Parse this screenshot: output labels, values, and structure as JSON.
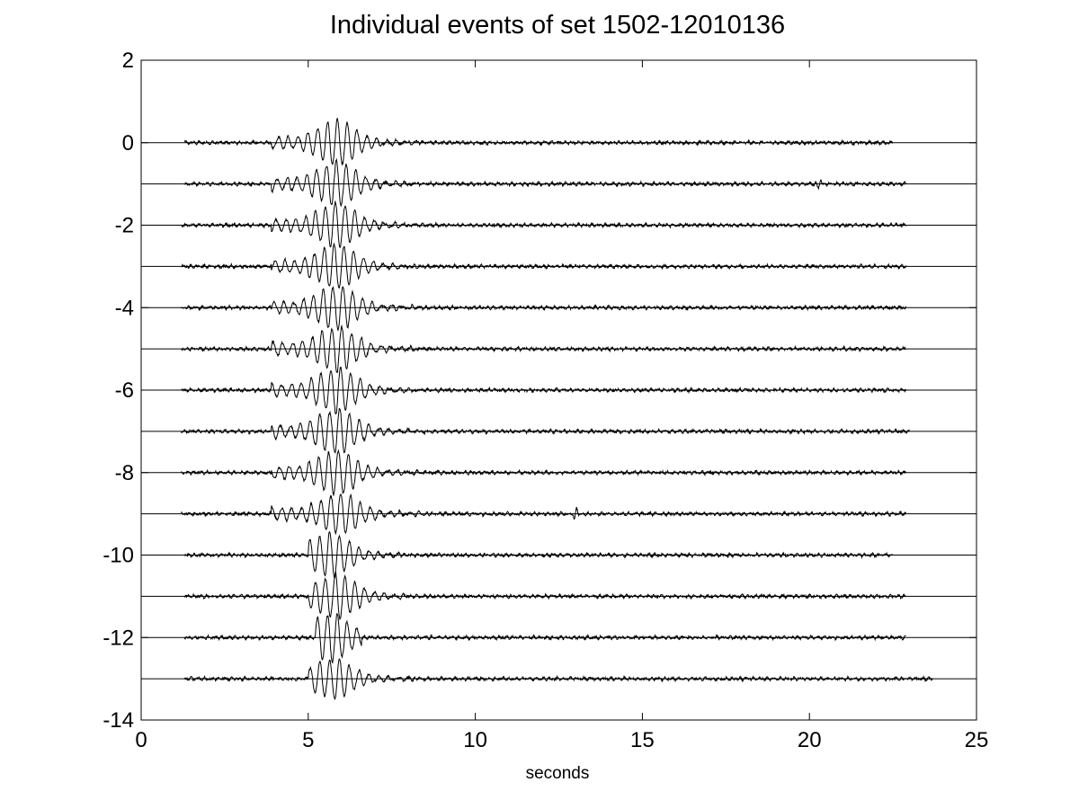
{
  "chart_data": {
    "type": "line",
    "title": "Individual events of set 1502-12010136",
    "xlabel": "seconds",
    "ylabel": "",
    "xlim": [
      0,
      25
    ],
    "ylim": [
      -14,
      2
    ],
    "x_ticks": [
      0,
      5,
      10,
      15,
      20,
      25
    ],
    "y_ticks": [
      2,
      0,
      -2,
      -4,
      -6,
      -8,
      -10,
      -12,
      -14
    ],
    "grid": false,
    "legend": "none",
    "line_color": "#000000",
    "series": [
      {
        "offset": 0,
        "x_start": 1.3,
        "x_end": 22.5,
        "peak_time": 5.8,
        "peak_amplitude": 0.47,
        "burst_start": 3.9,
        "burst_end": 8.3
      },
      {
        "offset": -1,
        "x_start": 1.3,
        "x_end": 22.9,
        "peak_time": 5.8,
        "peak_amplitude": 0.45,
        "burst_start": 3.9,
        "burst_end": 8.2,
        "spike_time": 20.3,
        "spike_amplitude": 0.12
      },
      {
        "offset": -2,
        "x_start": 1.2,
        "x_end": 22.9,
        "peak_time": 5.8,
        "peak_amplitude": 0.45,
        "burst_start": 3.9,
        "burst_end": 8.3
      },
      {
        "offset": -3,
        "x_start": 1.2,
        "x_end": 22.9,
        "peak_time": 5.8,
        "peak_amplitude": 0.45,
        "burst_start": 3.9,
        "burst_end": 8.0
      },
      {
        "offset": -4,
        "x_start": 1.2,
        "x_end": 22.9,
        "peak_time": 5.8,
        "peak_amplitude": 0.45,
        "burst_start": 3.9,
        "burst_end": 8.2
      },
      {
        "offset": -5,
        "x_start": 1.2,
        "x_end": 22.9,
        "peak_time": 5.8,
        "peak_amplitude": 0.45,
        "burst_start": 3.9,
        "burst_end": 8.4
      },
      {
        "offset": -6,
        "x_start": 1.2,
        "x_end": 22.9,
        "peak_time": 5.8,
        "peak_amplitude": 0.45,
        "burst_start": 3.9,
        "burst_end": 8.2
      },
      {
        "offset": -7,
        "x_start": 1.2,
        "x_end": 23.0,
        "peak_time": 5.8,
        "peak_amplitude": 0.45,
        "burst_start": 3.9,
        "burst_end": 8.5
      },
      {
        "offset": -8,
        "x_start": 1.2,
        "x_end": 22.9,
        "peak_time": 5.8,
        "peak_amplitude": 0.45,
        "burst_start": 3.9,
        "burst_end": 9.0
      },
      {
        "offset": -9,
        "x_start": 1.2,
        "x_end": 22.9,
        "peak_time": 5.9,
        "peak_amplitude": 0.4,
        "burst_start": 3.9,
        "burst_end": 8.6,
        "spike_time": 13.0,
        "spike_amplitude": 0.2
      },
      {
        "offset": -10,
        "x_start": 1.3,
        "x_end": 22.5,
        "peak_time": 5.6,
        "peak_amplitude": 0.45,
        "burst_start": 5.0,
        "burst_end": 7.8
      },
      {
        "offset": -11,
        "x_start": 1.3,
        "x_end": 22.9,
        "peak_time": 5.8,
        "peak_amplitude": 0.45,
        "burst_start": 5.0,
        "burst_end": 7.9
      },
      {
        "offset": -12,
        "x_start": 1.3,
        "x_end": 22.9,
        "peak_time": 5.6,
        "peak_amplitude": 0.5,
        "burst_start": 5.2,
        "burst_end": 6.6
      },
      {
        "offset": -13,
        "x_start": 1.3,
        "x_end": 23.7,
        "peak_time": 5.7,
        "peak_amplitude": 0.4,
        "burst_start": 5.0,
        "burst_end": 8.5
      }
    ]
  }
}
